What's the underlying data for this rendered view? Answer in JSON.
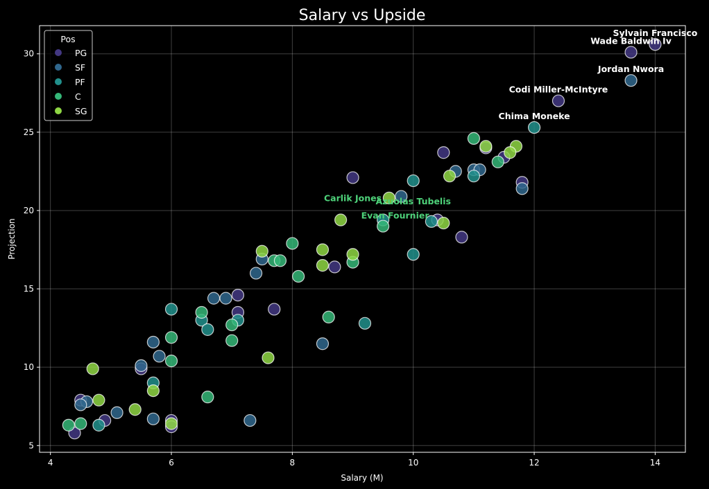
{
  "chart_data": {
    "type": "scatter",
    "title": "Salary vs Upside",
    "xlabel": "Salary (M)",
    "ylabel": "Projection",
    "xlim": [
      3.82,
      14.5
    ],
    "ylim": [
      4.57,
      31.8
    ],
    "xticks": [
      4,
      6,
      8,
      10,
      12,
      14
    ],
    "yticks": [
      5,
      10,
      15,
      20,
      25,
      30
    ],
    "grid": true,
    "legend": {
      "title": "Pos",
      "placement": "top-left",
      "entries": [
        {
          "label": "PG",
          "color": "#433882"
        },
        {
          "label": "SF",
          "color": "#30678d"
        },
        {
          "label": "PF",
          "color": "#21908c"
        },
        {
          "label": "C",
          "color": "#35b778"
        },
        {
          "label": "SG",
          "color": "#8fd744"
        }
      ]
    },
    "series": [
      {
        "name": "PG",
        "points": [
          [
            14.0,
            30.6
          ],
          [
            13.6,
            30.1
          ],
          [
            12.4,
            27.0
          ],
          [
            10.5,
            23.7
          ],
          [
            11.2,
            24.0
          ],
          [
            11.5,
            23.4
          ],
          [
            11.8,
            21.8
          ],
          [
            9.0,
            22.1
          ],
          [
            10.4,
            19.4
          ],
          [
            10.8,
            18.3
          ],
          [
            8.7,
            16.4
          ],
          [
            7.1,
            14.6
          ],
          [
            7.7,
            13.7
          ],
          [
            7.1,
            13.5
          ],
          [
            5.5,
            9.9
          ],
          [
            4.5,
            7.9
          ],
          [
            4.9,
            6.6
          ],
          [
            4.4,
            5.8
          ],
          [
            6.0,
            6.6
          ],
          [
            6.0,
            6.2
          ]
        ]
      },
      {
        "name": "SF",
        "points": [
          [
            13.6,
            28.3
          ],
          [
            10.7,
            22.5
          ],
          [
            11.0,
            22.6
          ],
          [
            11.1,
            22.6
          ],
          [
            11.8,
            21.4
          ],
          [
            9.8,
            20.9
          ],
          [
            7.5,
            16.9
          ],
          [
            7.4,
            16.0
          ],
          [
            6.7,
            14.4
          ],
          [
            6.9,
            14.4
          ],
          [
            5.7,
            11.6
          ],
          [
            5.8,
            10.7
          ],
          [
            5.5,
            10.1
          ],
          [
            8.5,
            11.5
          ],
          [
            4.6,
            7.8
          ],
          [
            4.5,
            7.6
          ],
          [
            5.1,
            7.1
          ],
          [
            5.7,
            6.7
          ],
          [
            7.3,
            6.6
          ]
        ]
      },
      {
        "name": "PF",
        "points": [
          [
            12.0,
            25.3
          ],
          [
            11.0,
            22.2
          ],
          [
            10.0,
            21.9
          ],
          [
            9.5,
            19.4
          ],
          [
            10.3,
            19.3
          ],
          [
            10.0,
            17.2
          ],
          [
            6.0,
            13.7
          ],
          [
            6.5,
            13.0
          ],
          [
            7.1,
            13.0
          ],
          [
            6.6,
            12.4
          ],
          [
            9.2,
            12.8
          ],
          [
            5.7,
            9.0
          ],
          [
            4.8,
            6.3
          ]
        ]
      },
      {
        "name": "C",
        "points": [
          [
            11.0,
            24.6
          ],
          [
            11.4,
            23.1
          ],
          [
            9.5,
            19.0
          ],
          [
            8.0,
            17.9
          ],
          [
            7.7,
            16.8
          ],
          [
            7.8,
            16.8
          ],
          [
            9.0,
            16.7
          ],
          [
            8.1,
            15.8
          ],
          [
            6.5,
            13.5
          ],
          [
            7.0,
            12.7
          ],
          [
            8.6,
            13.2
          ],
          [
            6.0,
            11.9
          ],
          [
            7.0,
            11.7
          ],
          [
            6.0,
            10.4
          ],
          [
            6.6,
            8.1
          ],
          [
            4.3,
            6.3
          ],
          [
            4.5,
            6.4
          ]
        ]
      },
      {
        "name": "SG",
        "points": [
          [
            11.2,
            24.1
          ],
          [
            11.7,
            24.1
          ],
          [
            11.6,
            23.7
          ],
          [
            10.6,
            22.2
          ],
          [
            9.6,
            20.8
          ],
          [
            8.8,
            19.4
          ],
          [
            10.5,
            19.2
          ],
          [
            7.5,
            17.4
          ],
          [
            8.5,
            17.5
          ],
          [
            9.0,
            17.2
          ],
          [
            8.5,
            16.5
          ],
          [
            7.6,
            10.6
          ],
          [
            4.7,
            9.9
          ],
          [
            5.7,
            8.5
          ],
          [
            4.8,
            7.9
          ],
          [
            5.4,
            7.3
          ],
          [
            6.0,
            6.4
          ]
        ]
      }
    ],
    "annotations": [
      {
        "text": "Sylvain Francisco",
        "x": 14.0,
        "y": 30.6,
        "style": "white"
      },
      {
        "text": "Wade Baldwin Iv",
        "x": 13.6,
        "y": 30.1,
        "style": "white"
      },
      {
        "text": "Jordan Nwora",
        "x": 13.6,
        "y": 28.3,
        "style": "white"
      },
      {
        "text": "Codi Miller-McIntyre",
        "x": 12.4,
        "y": 27.0,
        "style": "white"
      },
      {
        "text": "Chima Moneke",
        "x": 12.0,
        "y": 25.3,
        "style": "white"
      },
      {
        "text": "Carlik Jones",
        "x": 9.0,
        "y": 20.6,
        "style": "green"
      },
      {
        "text": "Azuolas Tubelis",
        "x": 10.0,
        "y": 20.4,
        "style": "green"
      },
      {
        "text": "Evan Fournier",
        "x": 9.7,
        "y": 19.5,
        "style": "green"
      }
    ]
  }
}
